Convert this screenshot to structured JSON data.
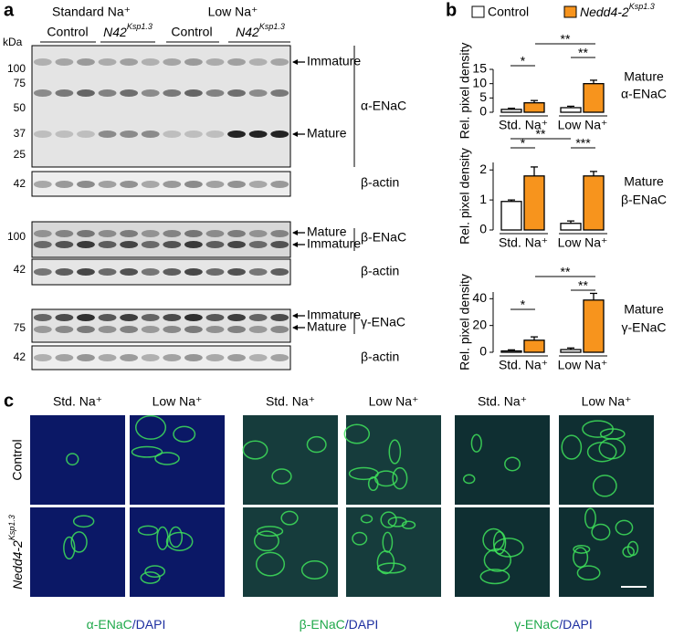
{
  "panel_a": {
    "label": "a",
    "groups": [
      {
        "name": "Standard Na⁺",
        "subgroups": [
          "Control",
          {
            "base": "N42",
            "sup": "Ksp1.3"
          }
        ]
      },
      {
        "name": "Low Na⁺",
        "subgroups": [
          "Control",
          {
            "base": "N42",
            "sup": "Ksp1.3"
          }
        ]
      }
    ],
    "kda_label": "kDa",
    "blots": [
      {
        "target": "α-ENaC",
        "markers": [
          100,
          75,
          50,
          37,
          25
        ],
        "bands": [
          "Immature",
          "Mature"
        ]
      },
      {
        "target": "β-actin",
        "markers": [
          42
        ]
      },
      {
        "target": "β-ENaC",
        "markers": [
          100
        ],
        "bands": [
          "Mature",
          "Immature"
        ]
      },
      {
        "target": "β-actin",
        "markers": [
          42
        ]
      },
      {
        "target": "γ-ENaC",
        "markers": [
          75
        ],
        "bands": [
          "Immature",
          "Mature"
        ]
      },
      {
        "target": "β-actin",
        "markers": [
          42
        ]
      }
    ]
  },
  "panel_b": {
    "label": "b",
    "legend": [
      "Control",
      {
        "base": "Nedd4-2",
        "sup": "Ksp1.3"
      }
    ]
  },
  "chart_data": [
    {
      "type": "bar",
      "title": [
        "Mature",
        "α-ENaC"
      ],
      "y_label": "Rel. pixel density",
      "categories": [
        "Std. Na⁺",
        "Low Na⁺"
      ],
      "ylim": [
        0,
        15
      ],
      "yticks": [
        0,
        5,
        10,
        15
      ],
      "series": [
        {
          "color": "#ffffff",
          "values": [
            1.0,
            1.6
          ],
          "errors": [
            0.4,
            0.5
          ]
        },
        {
          "color": "#f7941d",
          "values": [
            3.3,
            10.0
          ],
          "errors": [
            0.8,
            1.2
          ]
        }
      ],
      "annotations": [
        "*",
        "**",
        "**"
      ]
    },
    {
      "type": "bar",
      "title": [
        "Mature",
        "β-ENaC"
      ],
      "y_label": "Rel. pixel density",
      "categories": [
        "Std. Na⁺",
        "Low Na⁺"
      ],
      "ylim": [
        0,
        2.25
      ],
      "yticks": [
        0,
        1,
        2
      ],
      "series": [
        {
          "color": "#ffffff",
          "values": [
            0.95,
            0.22
          ],
          "errors": [
            0.05,
            0.08
          ]
        },
        {
          "color": "#f7941d",
          "values": [
            1.8,
            1.8
          ],
          "errors": [
            0.3,
            0.15
          ]
        }
      ],
      "annotations": [
        "*",
        "**",
        "***"
      ]
    },
    {
      "type": "bar",
      "title": [
        "Mature",
        "γ-ENaC"
      ],
      "y_label": "Rel. pixel density",
      "categories": [
        "Std. Na⁺",
        "Low Na⁺"
      ],
      "ylim": [
        0,
        45
      ],
      "yticks": [
        0,
        20,
        40
      ],
      "series": [
        {
          "color": "#ffffff",
          "values": [
            1,
            2
          ],
          "errors": [
            0.8,
            1.2
          ]
        },
        {
          "color": "#f7941d",
          "values": [
            9,
            39
          ],
          "errors": [
            2.5,
            5
          ]
        }
      ],
      "annotations": [
        "*",
        "**",
        "**"
      ]
    }
  ],
  "panel_c": {
    "label": "c",
    "columns": [
      "Std. Na⁺",
      "Low Na⁺",
      "Std. Na⁺",
      "Low Na⁺",
      "Std. Na⁺",
      "Low Na⁺"
    ],
    "rows": [
      "Control",
      {
        "base": "Nedd4-2",
        "sup": "Ksp1.3"
      }
    ],
    "captions": [
      {
        "marker": "α-ENaC",
        "stain": "/DAPI"
      },
      {
        "marker": "β-ENaC",
        "stain": "/DAPI"
      },
      {
        "marker": "γ-ENaC",
        "stain": "/DAPI"
      }
    ]
  }
}
